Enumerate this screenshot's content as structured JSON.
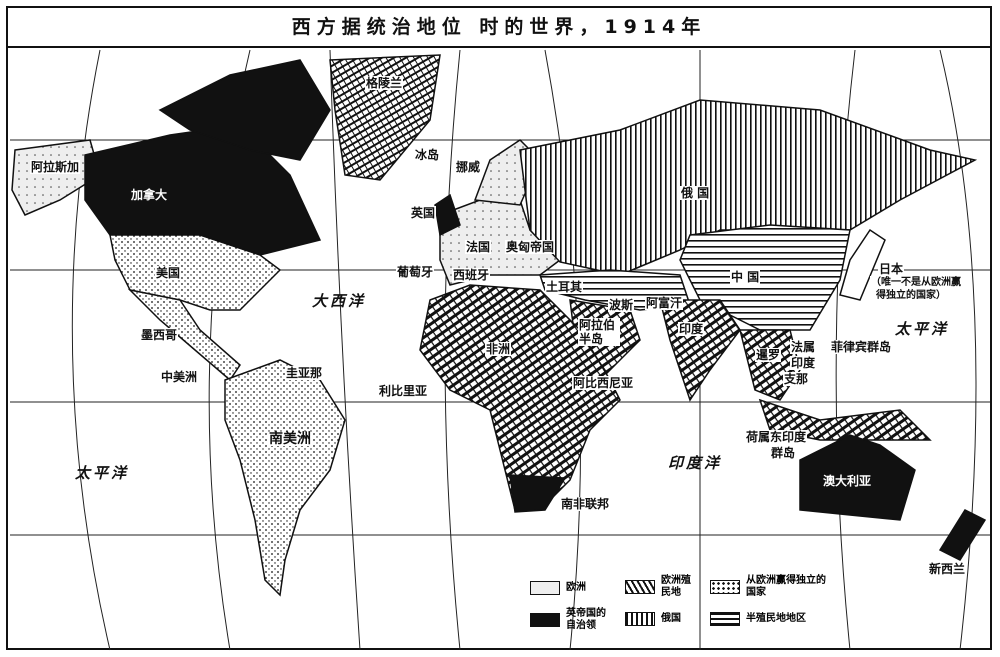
{
  "title": "西方据统治地位 时的世界，1914年",
  "labels": {
    "alaska": "阿拉斯加",
    "canada": "加拿大",
    "greenland": "格陵兰",
    "iceland": "冰岛",
    "norway": "挪威",
    "britain": "英国",
    "france": "法国",
    "austria_hungary": "奥匈帝国",
    "portugal": "葡萄牙",
    "spain": "西班牙",
    "turkey": "土耳其",
    "persia": "波斯",
    "afghanistan": "阿富汗",
    "arabia": "阿拉伯半岛",
    "russia": "俄 国",
    "china": "中 国",
    "india": "印度",
    "japan": "日本",
    "japan_note_1": "（唯一不是从欧洲赢",
    "japan_note_2": "得独立的国家）",
    "philippines": "菲律宾群岛",
    "siam": "暹罗",
    "indochina_1": "法属",
    "indochina_2": "印度",
    "indochina_3": "支那",
    "dutch_east_indies_1": "荷属东印度",
    "dutch_east_indies_2": "群岛",
    "australia": "澳大利亚",
    "new_zealand": "新西兰",
    "south_africa": "南非联邦",
    "abyssinia": "阿比西尼亚",
    "liberia": "利比里亚",
    "africa": "非洲",
    "usa": "美国",
    "mexico": "墨西哥",
    "central_america": "中美洲",
    "guiana": "圭亚那",
    "south_america": "南美洲"
  },
  "oceans": {
    "atlantic": "大西洋",
    "pacific_east": "太平洋",
    "pacific_west": "太平洋",
    "indian": "印度洋"
  },
  "legend": [
    {
      "label": "欧洲",
      "pattern": "dotted-white"
    },
    {
      "label": "欧洲殖民地",
      "pattern": "diagonal-hatch"
    },
    {
      "label": "从欧洲赢得独立的国家",
      "pattern": "dense-dots"
    },
    {
      "label": "英帝国的自治领",
      "pattern": "solid-black"
    },
    {
      "label": "俄国",
      "pattern": "vertical-lines"
    },
    {
      "label": "半殖民地地区",
      "pattern": "horizontal-lines"
    }
  ],
  "colors": {
    "ink": "#111111",
    "paper": "#ffffff"
  }
}
